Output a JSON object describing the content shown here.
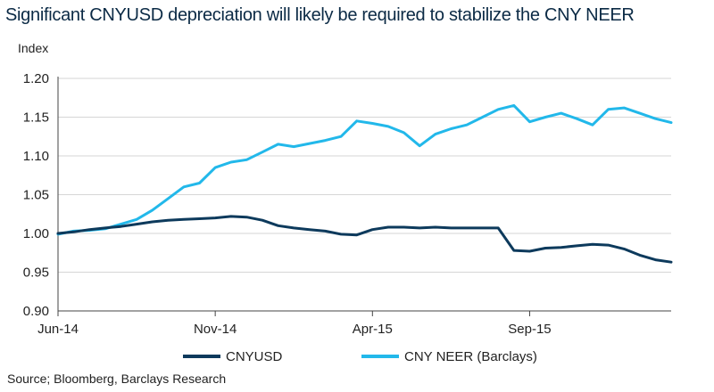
{
  "title": "Significant CNYUSD depreciation will likely be required to stabilize the CNY NEER",
  "source": "Source; Bloomberg, Barclays Research",
  "chart_data": {
    "type": "line",
    "title": "Significant CNYUSD depreciation will likely be required to stabilize the CNY NEER",
    "ylabel": "Index",
    "xlabel": "",
    "ylim": [
      0.9,
      1.2
    ],
    "yticks": [
      "0.90",
      "0.95",
      "1.00",
      "1.05",
      "1.10",
      "1.15",
      "1.20"
    ],
    "xticks": [
      "Jun-14",
      "Nov-14",
      "Apr-15",
      "Sep-15"
    ],
    "xtick_months": [
      0,
      5,
      10,
      15
    ],
    "xlim_months": [
      0,
      19.5
    ],
    "grid": "horizontal",
    "legend_position": "bottom",
    "series": [
      {
        "name": "CNYUSD",
        "color": "#0d3a5c",
        "x": [
          0,
          0.5,
          1,
          1.5,
          2,
          2.5,
          3,
          3.5,
          4,
          4.5,
          5,
          5.5,
          6,
          6.5,
          7,
          7.5,
          8,
          8.5,
          9,
          9.5,
          10,
          10.5,
          11,
          11.5,
          12,
          12.5,
          13,
          13.5,
          14,
          14.5,
          15,
          15.5,
          16,
          16.5,
          17,
          17.5,
          18,
          18.5,
          19,
          19.5
        ],
        "values": [
          1.0,
          1.002,
          1.005,
          1.007,
          1.009,
          1.012,
          1.015,
          1.017,
          1.018,
          1.019,
          1.02,
          1.022,
          1.021,
          1.017,
          1.01,
          1.007,
          1.005,
          1.003,
          0.999,
          0.998,
          1.005,
          1.008,
          1.008,
          1.007,
          1.008,
          1.007,
          1.007,
          1.007,
          1.007,
          0.978,
          0.977,
          0.981,
          0.982,
          0.984,
          0.986,
          0.985,
          0.98,
          0.972,
          0.966,
          0.963
        ]
      },
      {
        "name": "CNY NEER (Barclays)",
        "color": "#22b8ea",
        "x": [
          0,
          0.5,
          1,
          1.5,
          2,
          2.5,
          3,
          3.5,
          4,
          4.5,
          5,
          5.5,
          6,
          6.5,
          7,
          7.5,
          8,
          8.5,
          9,
          9.5,
          10,
          10.5,
          11,
          11.5,
          12,
          12.5,
          13,
          13.5,
          14,
          14.5,
          15,
          15.5,
          16,
          16.5,
          17,
          17.5,
          18,
          18.5,
          19,
          19.5
        ],
        "values": [
          0.999,
          1.003,
          1.004,
          1.006,
          1.012,
          1.018,
          1.03,
          1.045,
          1.06,
          1.065,
          1.085,
          1.092,
          1.095,
          1.105,
          1.115,
          1.112,
          1.116,
          1.12,
          1.125,
          1.145,
          1.142,
          1.138,
          1.13,
          1.113,
          1.128,
          1.135,
          1.14,
          1.15,
          1.16,
          1.165,
          1.144,
          1.15,
          1.155,
          1.148,
          1.14,
          1.16,
          1.162,
          1.155,
          1.148,
          1.143
        ]
      }
    ]
  }
}
